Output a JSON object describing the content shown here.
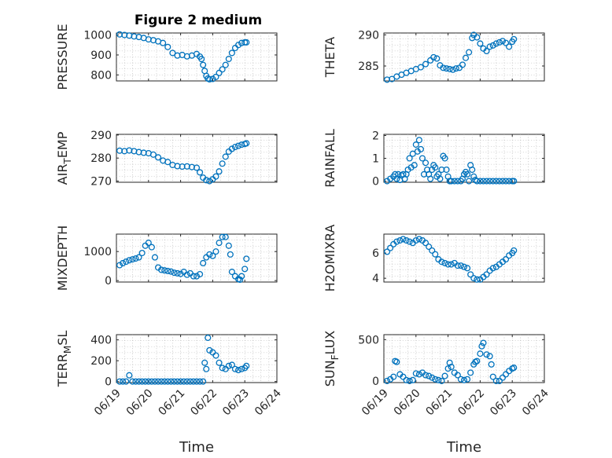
{
  "figure": {
    "title": "Figure 2 medium"
  },
  "chart_data": [
    {
      "type": "scatter",
      "ylabel": "PRESSURE",
      "title": "Figure 2 medium",
      "ylim": [
        770,
        1010
      ],
      "yticks": [
        800,
        900,
        1000
      ],
      "xlim": [
        0,
        5
      ],
      "xticks": [
        0,
        1,
        2,
        3,
        4,
        5
      ],
      "xticklabels": [],
      "xlabel": "",
      "grid": true,
      "series": [
        {
          "x": [
            0.1,
            0.25,
            0.4,
            0.55,
            0.7,
            0.85,
            1.0,
            1.15,
            1.3,
            1.45,
            1.6,
            1.75,
            1.9,
            2.05,
            2.2,
            2.35,
            2.5,
            2.6,
            2.65,
            2.7,
            2.75,
            2.8,
            2.85,
            2.9,
            3.0,
            3.1,
            3.2,
            3.3,
            3.4,
            3.5,
            3.6,
            3.7,
            3.8,
            3.9,
            4.0,
            4.05
          ],
          "y": [
            1003,
            1000,
            997,
            993,
            990,
            985,
            978,
            974,
            968,
            960,
            940,
            910,
            897,
            900,
            893,
            897,
            905,
            892,
            880,
            850,
            820,
            795,
            782,
            778,
            780,
            790,
            810,
            828,
            850,
            880,
            910,
            935,
            950,
            960,
            963,
            963
          ]
        }
      ]
    },
    {
      "type": "scatter",
      "ylabel": "THETA",
      "ylim": [
        282.6,
        290.3
      ],
      "yticks": [
        285,
        290
      ],
      "xlim": [
        0,
        5
      ],
      "xticks": [
        0,
        1,
        2,
        3,
        4,
        5
      ],
      "xticklabels": [],
      "xlabel": "",
      "grid": true,
      "series": [
        {
          "x": [
            0.1,
            0.25,
            0.4,
            0.55,
            0.7,
            0.85,
            1.0,
            1.15,
            1.3,
            1.45,
            1.55,
            1.65,
            1.75,
            1.85,
            1.95,
            2.05,
            2.15,
            2.25,
            2.35,
            2.45,
            2.55,
            2.65,
            2.75,
            2.8,
            2.9,
            3.0,
            3.1,
            3.2,
            3.3,
            3.4,
            3.5,
            3.6,
            3.7,
            3.8,
            3.9,
            4.0,
            4.05
          ],
          "y": [
            282.8,
            282.9,
            283.3,
            283.6,
            283.9,
            284.2,
            284.5,
            284.8,
            285.3,
            285.9,
            286.4,
            286.2,
            285.1,
            284.7,
            284.6,
            284.5,
            284.4,
            284.6,
            284.7,
            285.2,
            286.3,
            287.2,
            289.5,
            290.0,
            289.6,
            288.6,
            287.8,
            287.4,
            288.1,
            288.3,
            288.6,
            288.8,
            289.0,
            288.7,
            288.1,
            288.9,
            289.3
          ]
        }
      ]
    },
    {
      "type": "scatter",
      "ylabel": "AIR_TEMP",
      "ylabel_parts": [
        "AIR",
        "T",
        "EMP"
      ],
      "ylim": [
        269.5,
        290.3
      ],
      "yticks": [
        270,
        280,
        290
      ],
      "xlim": [
        0,
        5
      ],
      "xticks": [
        0,
        1,
        2,
        3,
        4,
        5
      ],
      "xticklabels": [],
      "xlabel": "",
      "grid": true,
      "series": [
        {
          "x": [
            0.1,
            0.25,
            0.4,
            0.55,
            0.7,
            0.85,
            1.0,
            1.15,
            1.3,
            1.45,
            1.6,
            1.75,
            1.9,
            2.05,
            2.2,
            2.35,
            2.5,
            2.6,
            2.7,
            2.8,
            2.9,
            3.0,
            3.1,
            3.2,
            3.3,
            3.4,
            3.5,
            3.6,
            3.7,
            3.8,
            3.9,
            4.0,
            4.05
          ],
          "y": [
            283.2,
            283.0,
            283.3,
            283.0,
            282.6,
            282.3,
            282.1,
            281.5,
            280.3,
            278.9,
            278.3,
            277.0,
            276.5,
            276.3,
            276.4,
            276.1,
            275.8,
            273.8,
            271.5,
            270.4,
            270.0,
            270.8,
            272.0,
            274.2,
            277.6,
            280.6,
            282.8,
            284.0,
            284.8,
            285.3,
            285.8,
            286.1,
            286.4
          ]
        }
      ]
    },
    {
      "type": "scatter",
      "ylabel": "RAINFALL",
      "ylim": [
        -0.05,
        2.05
      ],
      "yticks": [
        0,
        1,
        2
      ],
      "xlim": [
        0,
        5
      ],
      "xticks": [
        0,
        1,
        2,
        3,
        4,
        5
      ],
      "xticklabels": [],
      "xlabel": "",
      "grid": true,
      "series": [
        {
          "x": [
            0.1,
            0.2,
            0.3,
            0.35,
            0.4,
            0.45,
            0.5,
            0.55,
            0.6,
            0.65,
            0.7,
            0.75,
            0.8,
            0.85,
            0.9,
            0.95,
            1.0,
            1.05,
            1.1,
            1.15,
            1.2,
            1.25,
            1.3,
            1.35,
            1.4,
            1.45,
            1.5,
            1.55,
            1.6,
            1.65,
            1.7,
            1.75,
            1.8,
            1.85,
            1.9,
            1.95,
            2.0,
            2.05,
            2.1,
            2.2,
            2.3,
            2.4,
            2.45,
            2.5,
            2.55,
            2.6,
            2.65,
            2.7,
            2.75,
            2.8,
            2.85,
            2.9,
            3.0,
            3.1,
            3.2,
            3.3,
            3.4,
            3.5,
            3.6,
            3.7,
            3.8,
            3.9,
            4.0,
            4.05
          ],
          "y": [
            0,
            0.1,
            0.2,
            0.3,
            0.1,
            0.3,
            0.05,
            0.25,
            0.3,
            0.1,
            0.3,
            0.5,
            1.0,
            0.6,
            1.2,
            0.7,
            1.6,
            1.3,
            1.8,
            1.4,
            1.0,
            0.3,
            0.8,
            0.5,
            0.3,
            0.1,
            0.5,
            0.7,
            0.6,
            0.2,
            0.3,
            0.1,
            0.5,
            1.1,
            1.0,
            0.5,
            0.2,
            0,
            0,
            0,
            0,
            0,
            0.1,
            0.3,
            0.4,
            0.3,
            0,
            0.7,
            0.5,
            0.2,
            0.05,
            0,
            0,
            0,
            0,
            0,
            0,
            0,
            0,
            0,
            0,
            0,
            0,
            0
          ]
        }
      ]
    },
    {
      "type": "scatter",
      "ylabel": "MIXDEPTH",
      "ylim": [
        -50,
        1600
      ],
      "yticks": [
        0,
        1000
      ],
      "xlim": [
        0,
        5
      ],
      "xticks": [
        0,
        1,
        2,
        3,
        4,
        5
      ],
      "xticklabels": [],
      "xlabel": "",
      "grid": true,
      "series": [
        {
          "x": [
            0.1,
            0.2,
            0.3,
            0.4,
            0.5,
            0.6,
            0.7,
            0.8,
            0.9,
            1.0,
            1.1,
            1.2,
            1.3,
            1.4,
            1.5,
            1.6,
            1.7,
            1.8,
            1.9,
            2.0,
            2.1,
            2.2,
            2.3,
            2.4,
            2.5,
            2.6,
            2.7,
            2.8,
            2.9,
            3.0,
            3.1,
            3.2,
            3.3,
            3.4,
            3.5,
            3.55,
            3.6,
            3.7,
            3.8,
            3.85,
            3.9,
            4.0,
            4.05
          ],
          "y": [
            530,
            600,
            650,
            700,
            730,
            760,
            800,
            950,
            1200,
            1300,
            1150,
            800,
            450,
            370,
            350,
            330,
            310,
            270,
            250,
            230,
            300,
            200,
            250,
            150,
            150,
            220,
            600,
            800,
            900,
            850,
            1000,
            1300,
            1500,
            1500,
            1200,
            900,
            300,
            150,
            50,
            30,
            150,
            400,
            750
          ]
        }
      ]
    },
    {
      "type": "scatter",
      "ylabel": "H2OMIXRA",
      "ylim": [
        3.7,
        7.5
      ],
      "yticks": [
        4,
        6
      ],
      "xlim": [
        0,
        5
      ],
      "xticks": [
        0,
        1,
        2,
        3,
        4,
        5
      ],
      "xticklabels": [],
      "xlabel": "",
      "grid": true,
      "series": [
        {
          "x": [
            0.1,
            0.2,
            0.3,
            0.4,
            0.5,
            0.6,
            0.7,
            0.8,
            0.9,
            1.0,
            1.1,
            1.2,
            1.3,
            1.4,
            1.5,
            1.6,
            1.7,
            1.8,
            1.9,
            2.0,
            2.1,
            2.2,
            2.3,
            2.4,
            2.5,
            2.6,
            2.7,
            2.8,
            2.9,
            3.0,
            3.1,
            3.2,
            3.3,
            3.4,
            3.5,
            3.6,
            3.7,
            3.8,
            3.9,
            4.0,
            4.05
          ],
          "y": [
            6.1,
            6.4,
            6.7,
            6.9,
            7.0,
            7.1,
            7.0,
            6.9,
            6.8,
            7.0,
            7.1,
            7.0,
            6.8,
            6.5,
            6.2,
            5.9,
            5.5,
            5.3,
            5.2,
            5.1,
            5.1,
            5.2,
            5.0,
            5.0,
            4.9,
            4.8,
            4.3,
            4.0,
            3.9,
            3.9,
            4.1,
            4.3,
            4.6,
            4.8,
            4.9,
            5.1,
            5.3,
            5.5,
            5.8,
            6.0,
            6.2
          ]
        }
      ]
    },
    {
      "type": "scatter",
      "ylabel": "TERR_MSL",
      "ylabel_parts": [
        "TERR",
        "M",
        "SL"
      ],
      "ylim": [
        -10,
        450
      ],
      "yticks": [
        0,
        200,
        400
      ],
      "xlim": [
        0,
        5
      ],
      "xticks": [
        0,
        1,
        2,
        3,
        4,
        5
      ],
      "xticklabels": [
        "06/19",
        "06/20",
        "06/21",
        "06/22",
        "06/23",
        "06/24"
      ],
      "xlabel": "Time",
      "grid": true,
      "series": [
        {
          "x": [
            0.1,
            0.2,
            0.3,
            0.4,
            0.5,
            0.6,
            0.7,
            0.8,
            0.9,
            1.0,
            1.1,
            1.2,
            1.3,
            1.4,
            1.5,
            1.6,
            1.7,
            1.8,
            1.9,
            2.0,
            2.1,
            2.2,
            2.3,
            2.4,
            2.5,
            2.6,
            2.7,
            2.75,
            2.8,
            2.85,
            2.9,
            3.0,
            3.1,
            3.2,
            3.3,
            3.4,
            3.5,
            3.6,
            3.7,
            3.8,
            3.9,
            4.0,
            4.05
          ],
          "y": [
            0,
            0,
            0,
            60,
            0,
            0,
            0,
            0,
            0,
            0,
            0,
            0,
            0,
            0,
            0,
            0,
            0,
            0,
            0,
            0,
            0,
            0,
            0,
            0,
            0,
            0,
            0,
            180,
            120,
            420,
            300,
            280,
            250,
            180,
            130,
            120,
            150,
            160,
            120,
            110,
            120,
            130,
            150
          ]
        }
      ]
    },
    {
      "type": "scatter",
      "ylabel": "SUN_FLUX",
      "ylabel_parts": [
        "SUN",
        "F",
        "LUX"
      ],
      "ylim": [
        -20,
        560
      ],
      "yticks": [
        0,
        500
      ],
      "xlim": [
        0,
        5
      ],
      "xticks": [
        0,
        1,
        2,
        3,
        4,
        5
      ],
      "xticklabels": [
        "06/19",
        "06/20",
        "06/21",
        "06/22",
        "06/23",
        "06/24"
      ],
      "xlabel": "Time",
      "grid": true,
      "series": [
        {
          "x": [
            0.1,
            0.2,
            0.3,
            0.35,
            0.4,
            0.5,
            0.6,
            0.7,
            0.8,
            0.9,
            1.0,
            1.1,
            1.2,
            1.3,
            1.4,
            1.5,
            1.6,
            1.7,
            1.8,
            1.9,
            2.0,
            2.05,
            2.1,
            2.2,
            2.3,
            2.4,
            2.5,
            2.6,
            2.7,
            2.8,
            2.85,
            2.9,
            3.0,
            3.05,
            3.1,
            3.2,
            3.3,
            3.35,
            3.4,
            3.5,
            3.6,
            3.7,
            3.8,
            3.9,
            4.0,
            4.05
          ],
          "y": [
            0,
            20,
            50,
            240,
            230,
            80,
            50,
            10,
            0,
            10,
            90,
            80,
            100,
            70,
            60,
            40,
            20,
            10,
            0,
            60,
            150,
            220,
            170,
            100,
            70,
            20,
            10,
            20,
            100,
            200,
            230,
            240,
            330,
            420,
            460,
            320,
            300,
            200,
            50,
            0,
            0,
            40,
            80,
            120,
            150,
            160
          ]
        }
      ]
    }
  ]
}
